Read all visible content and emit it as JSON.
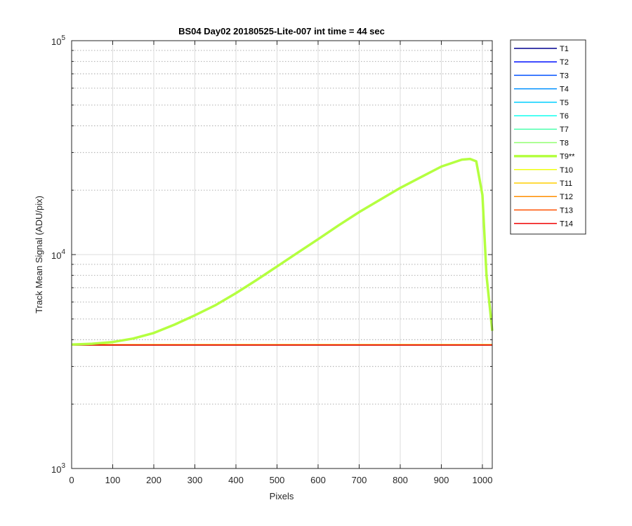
{
  "chart_data": {
    "type": "line",
    "title": "BS04 Day02 20180525-Lite-007 int time = 44 sec",
    "xlabel": "Pixels",
    "ylabel": "Track Mean Signal (ADU/pix)",
    "xlim": [
      0,
      1024
    ],
    "ylim": [
      1000,
      100000
    ],
    "yscale": "log",
    "grid": true,
    "legend_position": "outside-top-right",
    "x_ticks": [
      0,
      100,
      200,
      300,
      400,
      500,
      600,
      700,
      800,
      900,
      1000
    ],
    "y_ticks": [
      {
        "value": 1000,
        "base": "10",
        "exp": "3"
      },
      {
        "value": 10000,
        "base": "10",
        "exp": "4"
      },
      {
        "value": 100000,
        "base": "10",
        "exp": "5"
      }
    ],
    "series": [
      {
        "name": "T1",
        "color": "#00008f",
        "flat_value": 3780
      },
      {
        "name": "T2",
        "color": "#0010ff",
        "flat_value": 3780
      },
      {
        "name": "T3",
        "color": "#0050ff",
        "flat_value": 3780
      },
      {
        "name": "T4",
        "color": "#0090ff",
        "flat_value": 3780
      },
      {
        "name": "T5",
        "color": "#00cfff",
        "flat_value": 3780
      },
      {
        "name": "T6",
        "color": "#10ffef",
        "flat_value": 3780
      },
      {
        "name": "T7",
        "color": "#50ffaf",
        "flat_value": 3780
      },
      {
        "name": "T8",
        "color": "#90ff6f",
        "flat_value": 3780
      },
      {
        "name": "T9**",
        "color": "#b4ff40",
        "highlight": true,
        "x": [
          0,
          50,
          100,
          150,
          200,
          250,
          300,
          350,
          400,
          450,
          500,
          550,
          600,
          650,
          700,
          750,
          800,
          850,
          900,
          950,
          970,
          985,
          1000,
          1010,
          1024
        ],
        "y": [
          3800,
          3830,
          3900,
          4050,
          4300,
          4700,
          5200,
          5800,
          6600,
          7600,
          8800,
          10200,
          11800,
          13700,
          15800,
          18000,
          20500,
          23000,
          25800,
          27800,
          28000,
          27300,
          19000,
          8000,
          4400
        ]
      },
      {
        "name": "T10",
        "color": "#efff10",
        "flat_value": 3800
      },
      {
        "name": "T11",
        "color": "#ffcf00",
        "flat_value": 3790
      },
      {
        "name": "T12",
        "color": "#ff8f00",
        "flat_value": 3780
      },
      {
        "name": "T13",
        "color": "#ff5000",
        "flat_value": 3780
      },
      {
        "name": "T14",
        "color": "#ef0000",
        "flat_value": 3775
      }
    ]
  }
}
